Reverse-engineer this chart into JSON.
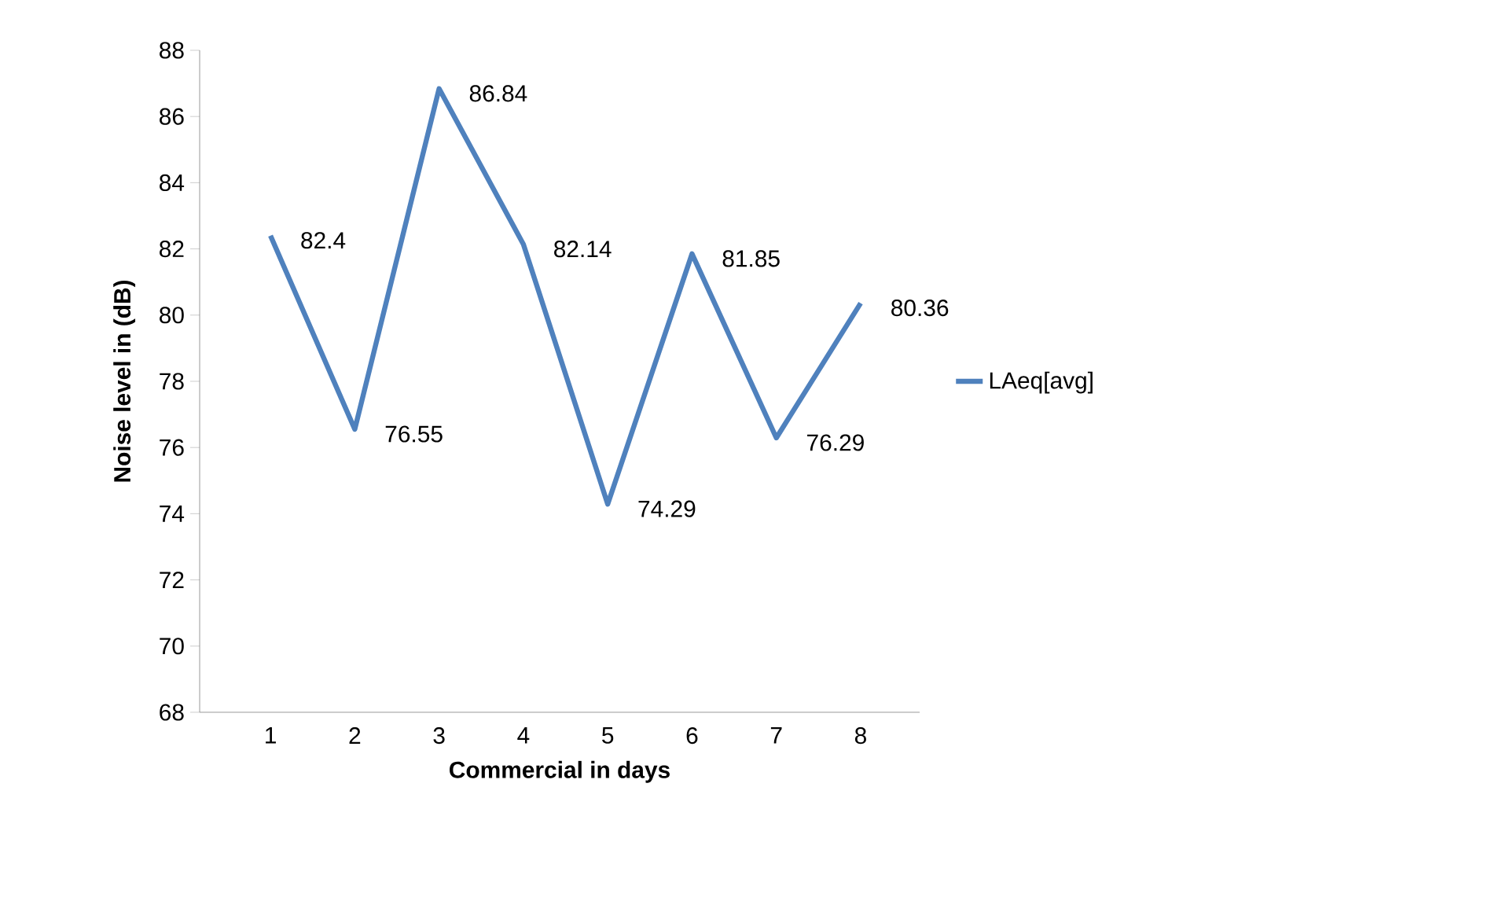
{
  "chart_data": {
    "type": "line",
    "xlabel": "Commercial in days",
    "ylabel": "Noise level in (dB)",
    "categories": [
      "1",
      "2",
      "3",
      "4",
      "5",
      "6",
      "7",
      "8"
    ],
    "series": [
      {
        "name": "LAeq[avg]",
        "color": "#4f81bd",
        "values": [
          82.4,
          76.55,
          86.84,
          82.14,
          74.29,
          81.85,
          76.29,
          80.36
        ]
      }
    ],
    "ylim": [
      68,
      88
    ],
    "yticks": [
      68,
      70,
      72,
      74,
      76,
      78,
      80,
      82,
      84,
      86,
      88
    ],
    "data_labels": true,
    "legend": "right",
    "grid": false,
    "marker": "none",
    "line_style": "solid"
  }
}
